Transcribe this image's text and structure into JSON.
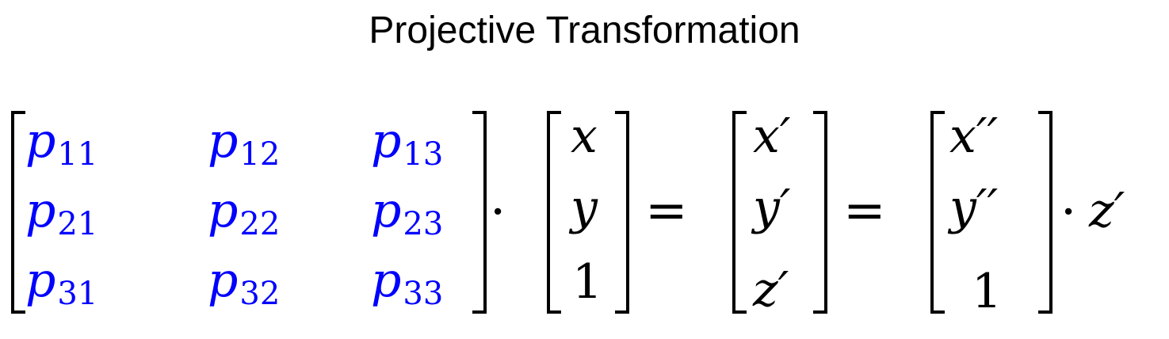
{
  "title": "Projective Transformation",
  "matrix": {
    "color": "#0000ff",
    "rows": [
      [
        {
          "sym": "p",
          "sub": "11"
        },
        {
          "sym": "p",
          "sub": "12"
        },
        {
          "sym": "p",
          "sub": "13"
        }
      ],
      [
        {
          "sym": "p",
          "sub": "21"
        },
        {
          "sym": "p",
          "sub": "22"
        },
        {
          "sym": "p",
          "sub": "23"
        }
      ],
      [
        {
          "sym": "p",
          "sub": "31"
        },
        {
          "sym": "p",
          "sub": "32"
        },
        {
          "sym": "p",
          "sub": "33"
        }
      ]
    ]
  },
  "input_vector": [
    "x",
    "y",
    "1"
  ],
  "output_vector": [
    "x′",
    "y′",
    "z′"
  ],
  "normalized_vector": [
    "x′′",
    "y′′",
    "1"
  ],
  "operators": {
    "dot": "·",
    "equals": "=",
    "scale": "z′"
  }
}
